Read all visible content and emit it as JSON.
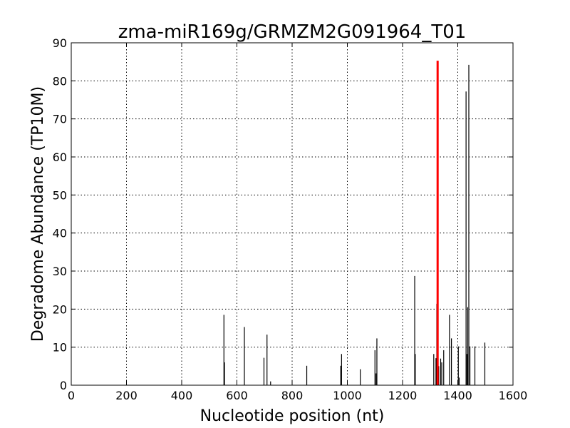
{
  "chart_data": {
    "type": "bar",
    "title": "zma-miR169g/GRMZM2G091964_T01",
    "xlabel": "Nucleotide position (nt)",
    "ylabel": "Degradome Abundance (TP10M)",
    "xlim": [
      0,
      1600
    ],
    "ylim": [
      0,
      90
    ],
    "xticks": [
      0,
      200,
      400,
      600,
      800,
      1000,
      1200,
      1400,
      1600
    ],
    "yticks": [
      0,
      10,
      20,
      30,
      40,
      50,
      60,
      70,
      80,
      90
    ],
    "grid": true,
    "colors": {
      "series": "#000000",
      "highlight": "#ff0000"
    },
    "series": [
      {
        "values": [
          [
            553,
            18.5
          ],
          [
            555,
            6.0
          ],
          [
            627,
            15.3
          ],
          [
            698,
            7.2
          ],
          [
            709,
            13.3
          ],
          [
            722,
            1.0
          ],
          [
            853,
            5.1
          ],
          [
            976,
            5.1
          ],
          [
            979,
            8.2
          ],
          [
            1047,
            4.2
          ],
          [
            1100,
            9.2
          ],
          [
            1104,
            3.1
          ],
          [
            1107,
            12.3
          ],
          [
            1244,
            28.7
          ],
          [
            1246,
            8.2
          ],
          [
            1313,
            8.2
          ],
          [
            1321,
            7.1
          ],
          [
            1324,
            21.4
          ],
          [
            1331,
            5.0
          ],
          [
            1338,
            7.0
          ],
          [
            1342,
            6.0
          ],
          [
            1349,
            9.2
          ],
          [
            1370,
            18.5
          ],
          [
            1377,
            12.3
          ],
          [
            1402,
            10.2
          ],
          [
            1405,
            2.0
          ],
          [
            1430,
            77.2
          ],
          [
            1433,
            8.2
          ],
          [
            1436,
            20.5
          ],
          [
            1440,
            84.2
          ],
          [
            1444,
            10.2
          ],
          [
            1462,
            10.2
          ],
          [
            1498,
            11.2
          ]
        ]
      },
      {
        "values": [
          [
            1327,
            85.3
          ]
        ]
      }
    ]
  }
}
